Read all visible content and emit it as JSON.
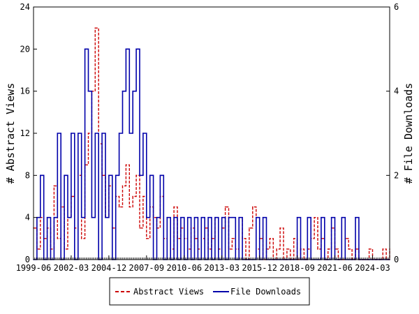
{
  "chart_data": {
    "type": "line",
    "ylabel_left": "# Abstract Views",
    "ylabel_right": "# File Downloads",
    "y_left_ticks": [
      "0",
      "4",
      "8",
      "12",
      "16",
      "20",
      "24"
    ],
    "y_right_ticks": [
      "0",
      "2",
      "4",
      "6"
    ],
    "ylim_left": [
      0,
      24
    ],
    "ylim_right": [
      0,
      6
    ],
    "x_tick_labels": [
      "1999-06",
      "2002-03",
      "2004-12",
      "2007-09",
      "2010-06",
      "2013-03",
      "2015-12",
      "2018-09",
      "2021-06",
      "2024-03"
    ],
    "x_range": [
      "1999-06",
      "2025-06"
    ],
    "grid": false,
    "legend_position": "bottom",
    "series": [
      {
        "name": "Abstract Views",
        "axis": "left",
        "color": "#cc0000",
        "style": "dashed",
        "x": [
          "1999-06",
          "1999-09",
          "1999-12",
          "2000-03",
          "2000-06",
          "2000-09",
          "2000-12",
          "2001-03",
          "2001-06",
          "2001-09",
          "2001-12",
          "2002-03",
          "2002-06",
          "2002-09",
          "2002-12",
          "2003-03",
          "2003-06",
          "2003-09",
          "2003-12",
          "2004-03",
          "2004-06",
          "2004-09",
          "2004-12",
          "2005-03",
          "2005-06",
          "2005-09",
          "2005-12",
          "2006-03",
          "2006-06",
          "2006-09",
          "2006-12",
          "2007-03",
          "2007-06",
          "2007-09",
          "2007-12",
          "2008-03",
          "2008-06",
          "2008-09",
          "2008-12",
          "2009-03",
          "2009-06",
          "2009-09",
          "2009-12",
          "2010-03",
          "2010-06",
          "2010-09",
          "2010-12",
          "2011-03",
          "2011-06",
          "2011-09",
          "2011-12",
          "2012-03",
          "2012-06",
          "2012-09",
          "2012-12",
          "2013-03",
          "2013-06",
          "2013-09",
          "2013-12",
          "2014-03",
          "2014-06",
          "2014-09",
          "2014-12",
          "2015-03",
          "2015-06",
          "2015-09",
          "2015-12",
          "2016-03",
          "2016-06",
          "2016-09",
          "2016-12",
          "2017-03",
          "2017-06",
          "2017-09",
          "2017-12",
          "2018-03",
          "2018-06",
          "2018-09",
          "2018-12",
          "2019-03",
          "2019-06",
          "2019-09",
          "2019-12",
          "2020-03",
          "2020-06",
          "2020-09",
          "2020-12",
          "2021-03",
          "2021-06",
          "2021-09",
          "2021-12",
          "2022-03",
          "2022-06",
          "2022-09",
          "2022-12",
          "2023-03",
          "2023-06",
          "2023-09",
          "2023-12",
          "2024-03",
          "2024-06",
          "2024-09",
          "2024-12",
          "2025-03",
          "2025-06"
        ],
        "values": [
          3,
          1,
          4,
          2,
          3,
          1,
          7,
          2,
          5,
          1,
          4,
          6,
          3,
          8,
          2,
          9,
          12,
          16,
          22,
          11,
          8,
          4,
          7,
          3,
          6,
          5,
          7,
          9,
          5,
          6,
          8,
          3,
          6,
          2,
          5,
          4,
          3,
          6,
          2,
          4,
          1,
          5,
          2,
          3,
          2,
          1,
          3,
          2,
          1,
          2,
          3,
          1,
          2,
          4,
          1,
          3,
          5,
          1,
          2,
          1,
          4,
          2,
          0,
          3,
          5,
          1,
          2,
          0,
          1,
          2,
          0,
          1,
          3,
          0,
          1,
          0,
          2,
          0,
          1,
          0,
          1,
          2,
          4,
          1,
          2,
          0,
          1,
          3,
          1,
          0,
          0,
          2,
          1,
          0,
          1,
          0,
          0,
          0,
          1,
          0,
          0,
          0,
          1,
          0,
          1
        ]
      },
      {
        "name": "File Downloads",
        "axis": "right",
        "color": "#0000aa",
        "style": "solid",
        "x": [
          "1999-06",
          "1999-09",
          "1999-12",
          "2000-03",
          "2000-06",
          "2000-09",
          "2000-12",
          "2001-03",
          "2001-06",
          "2001-09",
          "2001-12",
          "2002-03",
          "2002-06",
          "2002-09",
          "2002-12",
          "2003-03",
          "2003-06",
          "2003-09",
          "2003-12",
          "2004-03",
          "2004-06",
          "2004-09",
          "2004-12",
          "2005-03",
          "2005-06",
          "2005-09",
          "2005-12",
          "2006-03",
          "2006-06",
          "2006-09",
          "2006-12",
          "2007-03",
          "2007-06",
          "2007-09",
          "2007-12",
          "2008-03",
          "2008-06",
          "2008-09",
          "2008-12",
          "2009-03",
          "2009-06",
          "2009-09",
          "2009-12",
          "2010-03",
          "2010-06",
          "2010-09",
          "2010-12",
          "2011-03",
          "2011-06",
          "2011-09",
          "2011-12",
          "2012-03",
          "2012-06",
          "2012-09",
          "2012-12",
          "2013-03",
          "2013-06",
          "2013-09",
          "2013-12",
          "2014-03",
          "2014-06",
          "2014-09",
          "2014-12",
          "2015-03",
          "2015-06",
          "2015-09",
          "2015-12",
          "2016-03",
          "2016-06",
          "2016-09",
          "2016-12",
          "2017-03",
          "2017-06",
          "2017-09",
          "2017-12",
          "2018-03",
          "2018-06",
          "2018-09",
          "2018-12",
          "2019-03",
          "2019-06",
          "2019-09",
          "2019-12",
          "2020-03",
          "2020-06",
          "2020-09",
          "2020-12",
          "2021-03",
          "2021-06",
          "2021-09",
          "2021-12",
          "2022-03",
          "2022-06",
          "2022-09",
          "2022-12",
          "2023-03",
          "2023-06",
          "2023-09",
          "2023-12",
          "2024-03",
          "2024-06",
          "2024-09",
          "2024-12",
          "2025-03",
          "2025-06"
        ],
        "values": [
          0,
          1,
          2,
          0,
          1,
          0,
          1,
          3,
          0,
          2,
          1,
          3,
          0,
          3,
          1,
          5,
          4,
          1,
          3,
          0,
          3,
          1,
          2,
          0,
          2,
          3,
          4,
          5,
          3,
          4,
          5,
          2,
          3,
          1,
          2,
          0,
          1,
          2,
          0,
          1,
          0,
          1,
          0,
          1,
          0,
          1,
          0,
          1,
          0,
          1,
          0,
          1,
          0,
          1,
          0,
          1,
          0,
          1,
          1,
          0,
          1,
          0,
          0,
          0,
          0,
          1,
          0,
          1,
          0,
          0,
          0,
          0,
          0,
          0,
          0,
          0,
          0,
          1,
          0,
          0,
          1,
          0,
          0,
          0,
          1,
          0,
          0,
          1,
          0,
          0,
          1,
          0,
          0,
          0,
          1,
          0,
          0,
          0,
          0,
          0,
          0,
          0,
          0,
          0,
          0
        ]
      }
    ]
  }
}
